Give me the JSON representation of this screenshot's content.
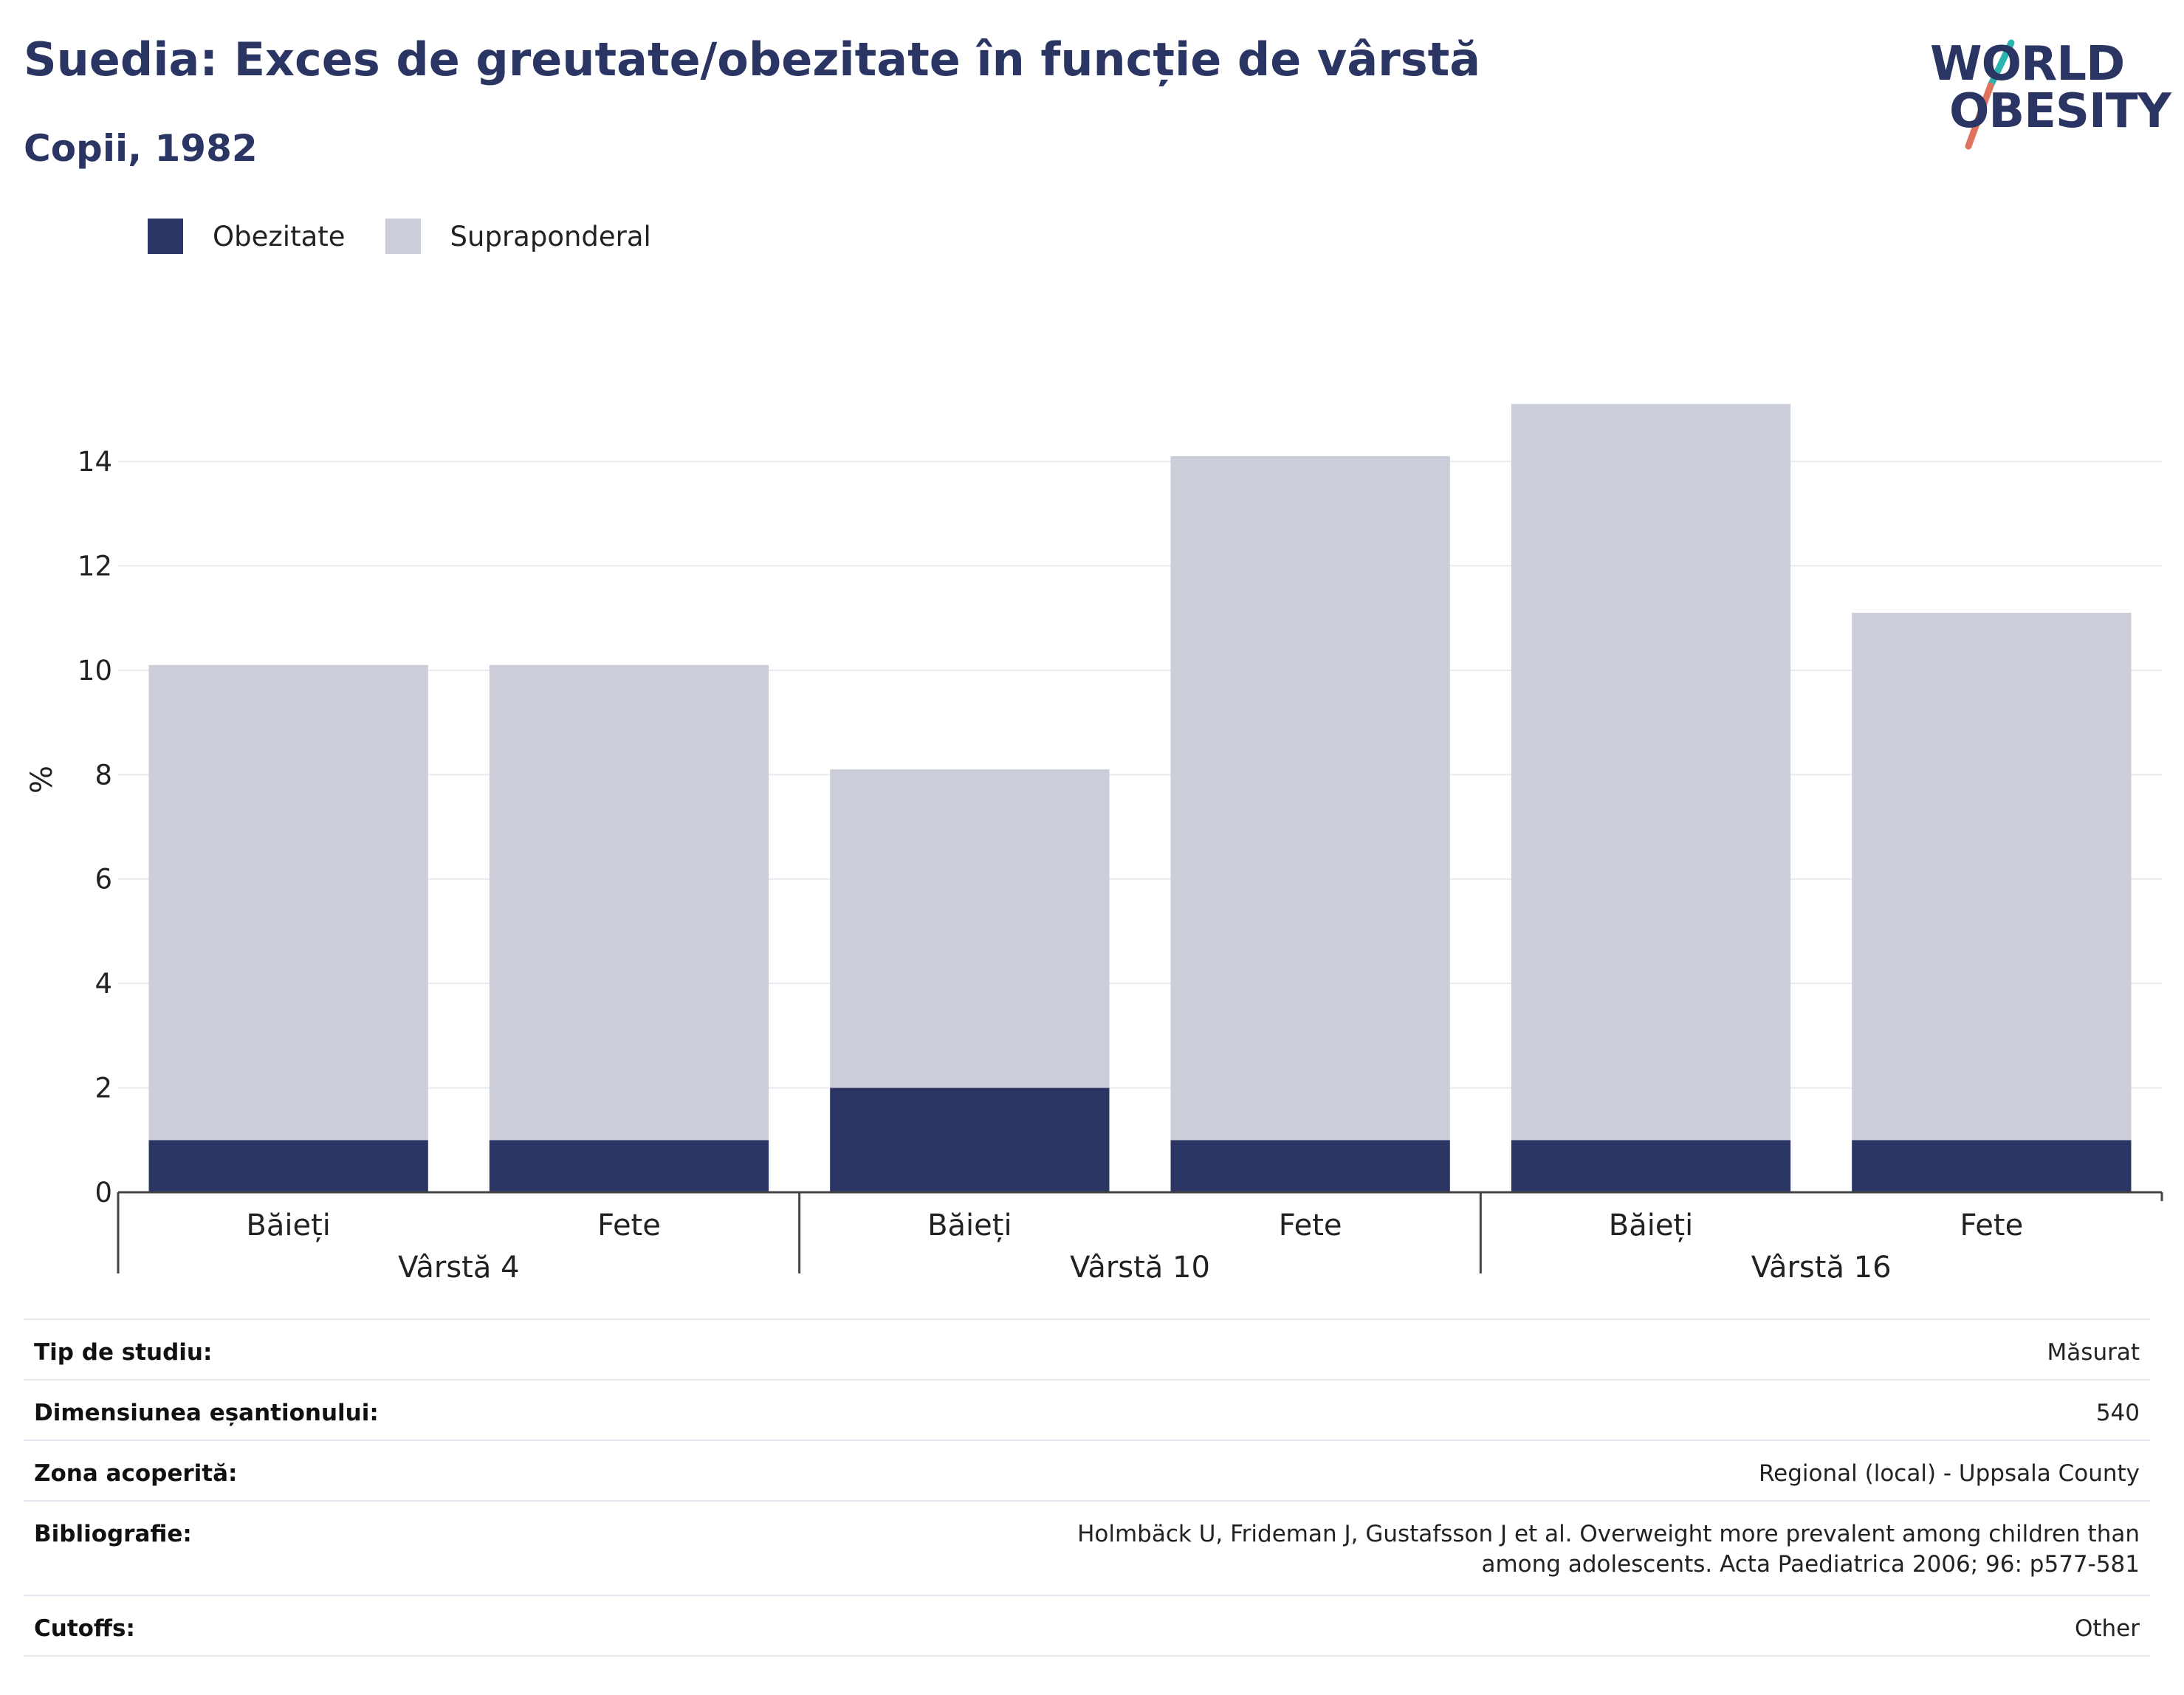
{
  "header": {
    "title": "Suedia: Exces de greutate/obezitate în funcție de vârstă",
    "subtitle": "Copii, 1982"
  },
  "logo": {
    "line1": "WORLD",
    "line2": "OBESITY",
    "colors": {
      "text": "#2a3563",
      "slash_top": "#2bb5b0",
      "slash_bottom": "#e0735f"
    }
  },
  "legend": {
    "items": [
      {
        "label": "Obezitate",
        "color": "#2a3563"
      },
      {
        "label": "Supraponderal",
        "color": "#cbcdd8"
      }
    ]
  },
  "chart_data": {
    "type": "bar",
    "stacked": true,
    "title": "Suedia: Exces de greutate/obezitate în funcție de vârstă",
    "subtitle": "Copii, 1982",
    "ylabel": "%",
    "ylim": [
      0,
      16
    ],
    "yticks": [
      0,
      2,
      4,
      6,
      8,
      10,
      12,
      14
    ],
    "grid": true,
    "legend_position": "top-left",
    "groups": [
      {
        "label": "Vârstă 4",
        "categories": [
          "Băieți",
          "Fete"
        ]
      },
      {
        "label": "Vârstă 10",
        "categories": [
          "Băieți",
          "Fete"
        ]
      },
      {
        "label": "Vârstă 16",
        "categories": [
          "Băieți",
          "Fete"
        ]
      }
    ],
    "categories": [
      "Băieți",
      "Fete",
      "Băieți",
      "Fete",
      "Băieți",
      "Fete"
    ],
    "series": [
      {
        "name": "Obezitate",
        "color": "#2a3563",
        "values": [
          1,
          1,
          2,
          1,
          1,
          1
        ]
      },
      {
        "name": "Supraponderal",
        "color": "#cbcdd8",
        "values": [
          9.1,
          9.1,
          6.1,
          13.1,
          14.1,
          10.1
        ]
      }
    ]
  },
  "info": {
    "rows": [
      {
        "label": "Tip de studiu:",
        "value": "Măsurat"
      },
      {
        "label": "Dimensiunea eșantionului:",
        "value": "540"
      },
      {
        "label": "Zona acoperită:",
        "value": "Regional (local) - Uppsala County"
      },
      {
        "label": "Bibliografie:",
        "value": "Holmbäck U, Frideman J, Gustafsson J et al. Overweight more prevalent among children than among adolescents. Acta Paediatrica 2006; 96: p577-581"
      },
      {
        "label": "Cutoffs:",
        "value": "Other"
      }
    ]
  }
}
